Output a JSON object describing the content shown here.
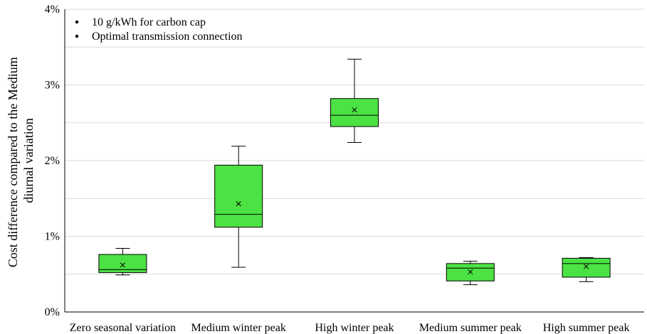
{
  "chart_data": {
    "type": "box",
    "title": "",
    "xlabel": "",
    "ylabel_lines": [
      "Cost difference compared to the Medium",
      "diurnal variation"
    ],
    "ylim": [
      0,
      4
    ],
    "yticks": [
      0,
      1,
      2,
      3,
      4
    ],
    "ytick_labels": [
      "0%",
      "1%",
      "2%",
      "3%",
      "4%"
    ],
    "y_unit": "%",
    "grid": "horizontal",
    "notes": [
      "10 g/kWh for carbon cap",
      "Optimal transmission connection"
    ],
    "box_color": "#4ce243",
    "categories": [
      "Zero seasonal variation",
      "Medium winter peak",
      "High winter peak",
      "Medium summer peak",
      "High summer peak"
    ],
    "boxes": [
      {
        "min": 0.49,
        "q1": 0.52,
        "median": 0.56,
        "q3": 0.76,
        "max": 0.84,
        "mean": 0.62
      },
      {
        "min": 0.59,
        "q1": 1.12,
        "median": 1.29,
        "q3": 1.94,
        "max": 2.19,
        "mean": 1.43
      },
      {
        "min": 2.24,
        "q1": 2.45,
        "median": 2.6,
        "q3": 2.82,
        "max": 3.34,
        "mean": 2.67
      },
      {
        "min": 0.36,
        "q1": 0.41,
        "median": 0.58,
        "q3": 0.64,
        "max": 0.67,
        "mean": 0.53
      },
      {
        "min": 0.4,
        "q1": 0.46,
        "median": 0.64,
        "q3": 0.71,
        "max": 0.72,
        "mean": 0.6
      }
    ]
  }
}
